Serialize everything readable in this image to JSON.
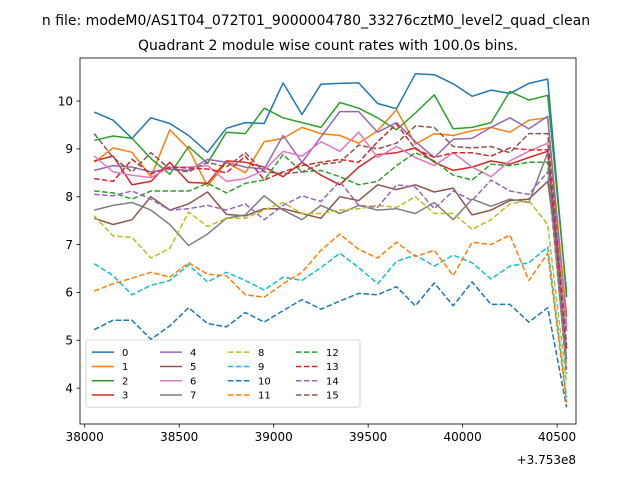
{
  "chart_data": {
    "type": "line",
    "suptitle": "n file: modeM0/AS1T04_072T01_9000004780_33276cztM0_level2_quad_clean",
    "title": "Quadrant 2 module wise count rates with 100.0s bins.",
    "xlabel": "",
    "ylabel": "",
    "x_offset_label": "+3.753e8",
    "xlim": [
      37975,
      40600
    ],
    "ylim": [
      3.25,
      10.9
    ],
    "xticks": [
      38000,
      38500,
      39000,
      39500,
      40000,
      40500
    ],
    "yticks": [
      4,
      5,
      6,
      7,
      8,
      9,
      10
    ],
    "x": [
      38050,
      38150,
      38250,
      38350,
      38450,
      38550,
      38650,
      38750,
      38850,
      38950,
      39050,
      39150,
      39250,
      39350,
      39450,
      39550,
      39650,
      39750,
      39850,
      39950,
      40050,
      40150,
      40250,
      40350,
      40450,
      40550
    ],
    "legend": {
      "loc": "lower-left",
      "ncol": 4
    },
    "series": [
      {
        "name": "0",
        "color": "#1f77b4",
        "dash": "solid",
        "values": [
          9.77,
          9.6,
          9.22,
          9.65,
          9.53,
          9.28,
          8.93,
          9.43,
          9.55,
          9.53,
          10.38,
          9.72,
          10.35,
          10.37,
          10.38,
          9.95,
          9.84,
          10.57,
          10.55,
          10.36,
          10.1,
          10.23,
          10.16,
          10.37,
          10.46,
          5.9
        ]
      },
      {
        "name": "1",
        "color": "#ff7f0e",
        "dash": "solid",
        "values": [
          8.72,
          9.02,
          8.93,
          8.42,
          9.4,
          9.0,
          8.22,
          8.72,
          8.5,
          9.15,
          9.22,
          9.45,
          9.32,
          9.28,
          9.12,
          9.38,
          9.82,
          9.1,
          9.32,
          9.28,
          9.38,
          9.45,
          9.35,
          9.6,
          9.65,
          5.5
        ]
      },
      {
        "name": "2",
        "color": "#2ca02c",
        "dash": "solid",
        "values": [
          9.18,
          9.27,
          9.22,
          8.8,
          8.47,
          9.05,
          8.7,
          9.35,
          9.32,
          9.85,
          9.65,
          9.55,
          9.45,
          9.97,
          9.85,
          9.65,
          9.4,
          9.75,
          10.13,
          9.42,
          9.45,
          9.55,
          10.2,
          10.02,
          10.12,
          6.0
        ]
      },
      {
        "name": "3",
        "color": "#d62728",
        "dash": "solid",
        "values": [
          8.75,
          8.85,
          8.25,
          8.32,
          8.72,
          8.3,
          8.28,
          8.75,
          8.72,
          8.62,
          8.42,
          8.72,
          8.45,
          8.25,
          8.62,
          8.88,
          8.92,
          9.02,
          8.72,
          8.55,
          8.62,
          8.75,
          8.68,
          8.82,
          8.95,
          5.3
        ]
      },
      {
        "name": "4",
        "color": "#9467bd",
        "dash": "solid",
        "values": [
          8.55,
          8.65,
          8.62,
          8.52,
          8.58,
          8.55,
          8.78,
          8.72,
          8.62,
          8.58,
          9.28,
          8.72,
          9.25,
          9.78,
          9.78,
          9.35,
          9.55,
          9.15,
          8.82,
          9.2,
          9.22,
          9.45,
          9.65,
          9.42,
          9.68,
          5.2
        ]
      },
      {
        "name": "5",
        "color": "#8c564b",
        "dash": "solid",
        "values": [
          7.55,
          7.42,
          7.52,
          8.0,
          7.72,
          7.85,
          8.1,
          7.63,
          7.6,
          7.75,
          7.75,
          7.65,
          7.55,
          8.0,
          7.92,
          8.25,
          8.15,
          8.25,
          8.1,
          8.18,
          7.62,
          7.72,
          7.92,
          7.95,
          8.32,
          5.5
        ]
      },
      {
        "name": "6",
        "color": "#e377c2",
        "dash": "solid",
        "values": [
          8.85,
          8.52,
          8.45,
          8.4,
          8.62,
          8.62,
          8.65,
          8.32,
          8.38,
          8.55,
          8.95,
          8.85,
          9.15,
          8.95,
          9.35,
          8.82,
          9.05,
          8.82,
          8.65,
          8.92,
          8.62,
          8.42,
          8.75,
          8.95,
          9.12,
          5.3
        ]
      },
      {
        "name": "7",
        "color": "#7f7f7f",
        "dash": "solid",
        "values": [
          7.72,
          7.82,
          7.88,
          7.72,
          7.42,
          6.98,
          7.22,
          7.55,
          7.62,
          8.02,
          7.72,
          7.52,
          7.82,
          7.65,
          7.82,
          7.72,
          7.75,
          7.65,
          7.88,
          7.52,
          7.95,
          7.8,
          7.95,
          7.88,
          8.92,
          4.6
        ]
      },
      {
        "name": "8",
        "color": "#bcbd22",
        "dash": "dashed",
        "values": [
          7.6,
          7.18,
          7.15,
          6.72,
          6.92,
          7.68,
          7.38,
          7.55,
          7.55,
          7.72,
          7.88,
          7.65,
          7.65,
          7.72,
          7.75,
          7.82,
          7.78,
          8.0,
          7.65,
          7.65,
          7.32,
          7.52,
          7.85,
          7.92,
          7.42,
          4.1
        ]
      },
      {
        "name": "9",
        "color": "#17becf",
        "dash": "dashed",
        "values": [
          6.6,
          6.35,
          5.95,
          6.15,
          6.25,
          6.58,
          6.22,
          6.42,
          6.25,
          6.05,
          6.32,
          6.25,
          6.52,
          6.82,
          6.52,
          6.18,
          6.65,
          6.78,
          6.55,
          6.78,
          6.62,
          6.28,
          6.55,
          6.62,
          6.95,
          3.8
        ]
      },
      {
        "name": "10",
        "color": "#1f77b4",
        "dash": "dashed",
        "values": [
          5.22,
          5.42,
          5.42,
          5.02,
          5.3,
          5.68,
          5.35,
          5.28,
          5.58,
          5.38,
          5.62,
          5.85,
          5.65,
          5.82,
          5.98,
          5.95,
          6.12,
          5.72,
          6.2,
          5.72,
          6.22,
          5.75,
          5.75,
          5.38,
          5.68,
          3.6
        ]
      },
      {
        "name": "11",
        "color": "#ff7f0e",
        "dash": "dashed",
        "values": [
          6.03,
          6.18,
          6.3,
          6.42,
          6.32,
          6.62,
          6.38,
          6.35,
          5.95,
          5.9,
          6.18,
          6.42,
          6.88,
          7.22,
          6.9,
          6.72,
          7.05,
          6.75,
          6.88,
          6.35,
          7.05,
          7.0,
          7.2,
          6.25,
          6.82,
          3.7
        ]
      },
      {
        "name": "12",
        "color": "#2ca02c",
        "dash": "dashed",
        "values": [
          8.12,
          8.08,
          7.95,
          8.12,
          8.12,
          8.12,
          8.28,
          8.08,
          8.28,
          8.35,
          8.88,
          8.52,
          8.55,
          8.42,
          8.25,
          8.32,
          8.65,
          8.92,
          8.75,
          8.45,
          8.35,
          8.68,
          8.65,
          8.72,
          8.72,
          4.3
        ]
      },
      {
        "name": "13",
        "color": "#d62728",
        "dash": "dashed",
        "values": [
          8.38,
          8.32,
          8.78,
          8.48,
          8.62,
          8.6,
          8.58,
          8.5,
          8.85,
          8.35,
          8.52,
          8.65,
          8.72,
          8.78,
          8.72,
          9.15,
          9.52,
          9.0,
          8.82,
          8.92,
          8.92,
          8.85,
          9.02,
          8.98,
          8.98,
          4.8
        ]
      },
      {
        "name": "14",
        "color": "#9467bd",
        "dash": "dashed",
        "values": [
          8.05,
          8.02,
          8.12,
          7.95,
          7.72,
          7.75,
          7.82,
          7.72,
          7.85,
          7.52,
          7.82,
          8.02,
          7.9,
          8.32,
          7.82,
          7.78,
          8.25,
          8.2,
          7.75,
          8.12,
          7.92,
          8.35,
          8.12,
          8.05,
          8.52,
          4.4
        ]
      },
      {
        "name": "15",
        "color": "#8c564b",
        "dash": "dashed",
        "values": [
          9.32,
          8.82,
          8.52,
          8.92,
          8.58,
          8.52,
          8.72,
          8.62,
          8.92,
          8.52,
          8.48,
          8.52,
          8.68,
          8.72,
          9.08,
          9.0,
          9.12,
          9.48,
          9.45,
          9.05,
          9.02,
          9.05,
          8.92,
          9.32,
          9.32,
          4.9
        ]
      }
    ]
  }
}
